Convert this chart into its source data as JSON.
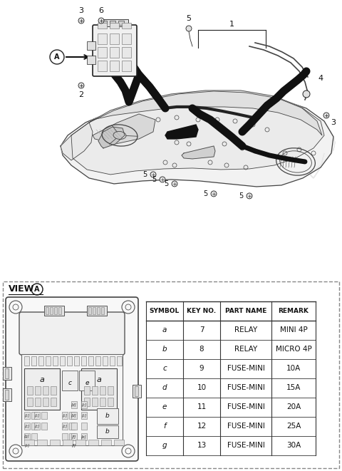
{
  "bg_color": "#ffffff",
  "table_headers": [
    "SYMBOL",
    "KEY NO.",
    "PART NAME",
    "REMARK"
  ],
  "table_rows": [
    [
      "a",
      "7",
      "RELAY",
      "MINI 4P"
    ],
    [
      "b",
      "8",
      "RELAY",
      "MICRO 4P"
    ],
    [
      "c",
      "9",
      "FUSE-MINI",
      "10A"
    ],
    [
      "d",
      "10",
      "FUSE-MINI",
      "15A"
    ],
    [
      "e",
      "11",
      "FUSE-MINI",
      "20A"
    ],
    [
      "f",
      "12",
      "FUSE-MINI",
      "25A"
    ],
    [
      "g",
      "13",
      "FUSE-MINI",
      "30A"
    ]
  ],
  "fig_width": 4.8,
  "fig_height": 6.61,
  "dpi": 100
}
